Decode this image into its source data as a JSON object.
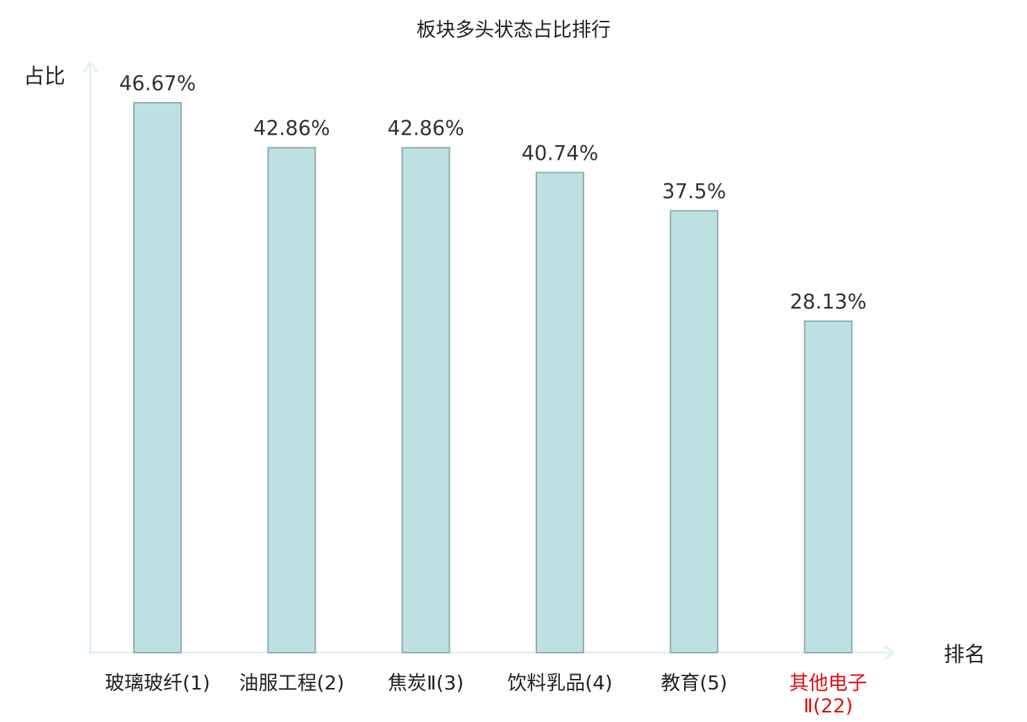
{
  "chart_data": {
    "type": "bar",
    "title": "板块多头状态占比排行",
    "ylabel": "占比",
    "xlabel": "排名",
    "categories": [
      [
        "玻璃玻纤(1)"
      ],
      [
        "油服工程(2)"
      ],
      [
        "焦炭Ⅱ(3)"
      ],
      [
        "饮料乳品(4)"
      ],
      [
        "教育(5)"
      ],
      [
        "其他电子",
        "Ⅱ(22)"
      ]
    ],
    "values": [
      46.67,
      42.86,
      42.86,
      40.74,
      37.5,
      28.13
    ],
    "value_labels": [
      "46.67%",
      "42.86%",
      "42.86%",
      "40.74%",
      "37.5%",
      "28.13%"
    ],
    "highlight_index": 5,
    "ylim": [
      0,
      50
    ],
    "grid": false,
    "colors": {
      "bar_fill": "#bde0e2",
      "bar_stroke": "#8faaaa",
      "axis": "#e0f2f0",
      "text": "#222222",
      "highlight_text": "#e01010"
    }
  }
}
